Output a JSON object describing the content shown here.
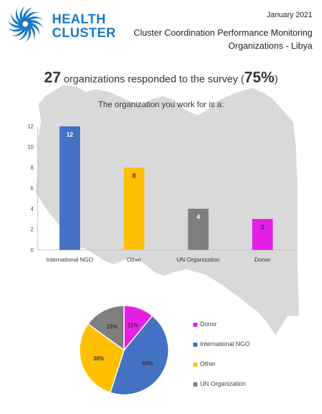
{
  "header": {
    "logo_line1": "HEALTH",
    "logo_line2": "CLUSTER",
    "date": "January 2021",
    "report_title_line1": "Cluster Coordination Performance Monitoring",
    "report_title_line2": "Organizations - Libya"
  },
  "headline": {
    "count": "27",
    "text": " organizations responded to the survey (",
    "percent": "75%",
    "close": ")"
  },
  "colors": {
    "logo": "#1a78c2",
    "map": "#d9d9d9",
    "International NGO": "#4472c4",
    "Other": "#ffc000",
    "UN Organization": "#7f7f7f",
    "Donor": "#e61ee6"
  },
  "chart_data": [
    {
      "type": "bar",
      "title": "The organization you work for is a:",
      "categories": [
        "International NGO",
        "Other",
        "UN Organization",
        "Donor"
      ],
      "values": [
        12,
        8,
        4,
        3
      ],
      "data_labels": [
        "12",
        "8",
        "4",
        "3"
      ],
      "ylim": [
        0,
        12
      ],
      "yticks": [
        "0",
        "2",
        "4",
        "6",
        "8",
        "10",
        "12"
      ],
      "xlabel": "",
      "ylabel": "",
      "grid": false
    },
    {
      "type": "pie",
      "categories": [
        "Donor",
        "International NGO",
        "Other",
        "UN Organization"
      ],
      "values": [
        11,
        44,
        30,
        15
      ],
      "data_labels": [
        "11%",
        "44%",
        "30%",
        "15%"
      ],
      "legend": "right"
    }
  ]
}
